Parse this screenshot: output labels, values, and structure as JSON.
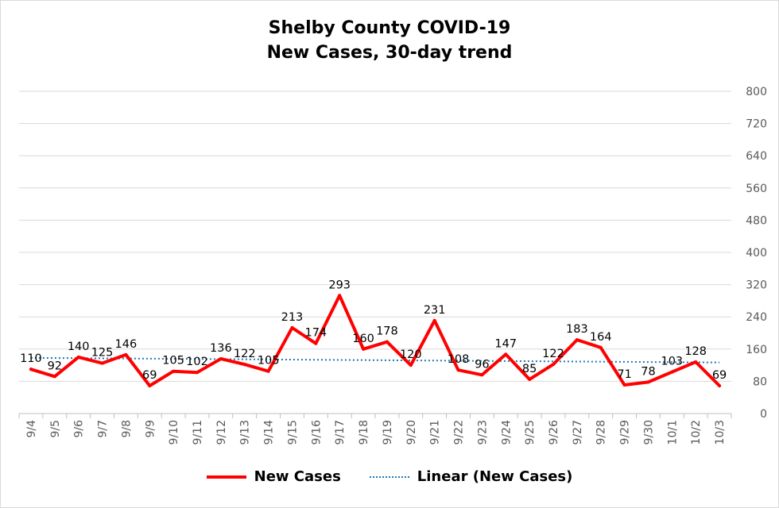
{
  "chart_data": {
    "type": "line",
    "title_line1": "Shelby County COVID-19",
    "title_line2": "New Cases, 30-day trend",
    "categories": [
      "9/4",
      "9/5",
      "9/6",
      "9/7",
      "9/8",
      "9/9",
      "9/10",
      "9/11",
      "9/12",
      "9/13",
      "9/14",
      "9/15",
      "9/16",
      "9/17",
      "9/18",
      "9/19",
      "9/20",
      "9/21",
      "9/22",
      "9/23",
      "9/24",
      "9/25",
      "9/26",
      "9/27",
      "9/28",
      "9/29",
      "9/30",
      "10/1",
      "10/2",
      "10/3"
    ],
    "series": [
      {
        "name": "New Cases",
        "color": "#ff0000",
        "values": [
          110,
          92,
          140,
          125,
          146,
          69,
          105,
          102,
          136,
          122,
          105,
          213,
          174,
          293,
          160,
          178,
          120,
          231,
          108,
          96,
          147,
          85,
          122,
          183,
          164,
          71,
          78,
          103,
          128,
          69
        ]
      },
      {
        "name": "Linear (New Cases)",
        "color": "#1f77b4",
        "style": "dotted",
        "trendline": true
      }
    ],
    "y_axis": {
      "position": "right",
      "ylim": [
        0,
        800
      ],
      "ticks": [
        0,
        80,
        160,
        240,
        320,
        400,
        480,
        560,
        640,
        720,
        800
      ]
    },
    "grid": true,
    "legend": "bottom"
  }
}
